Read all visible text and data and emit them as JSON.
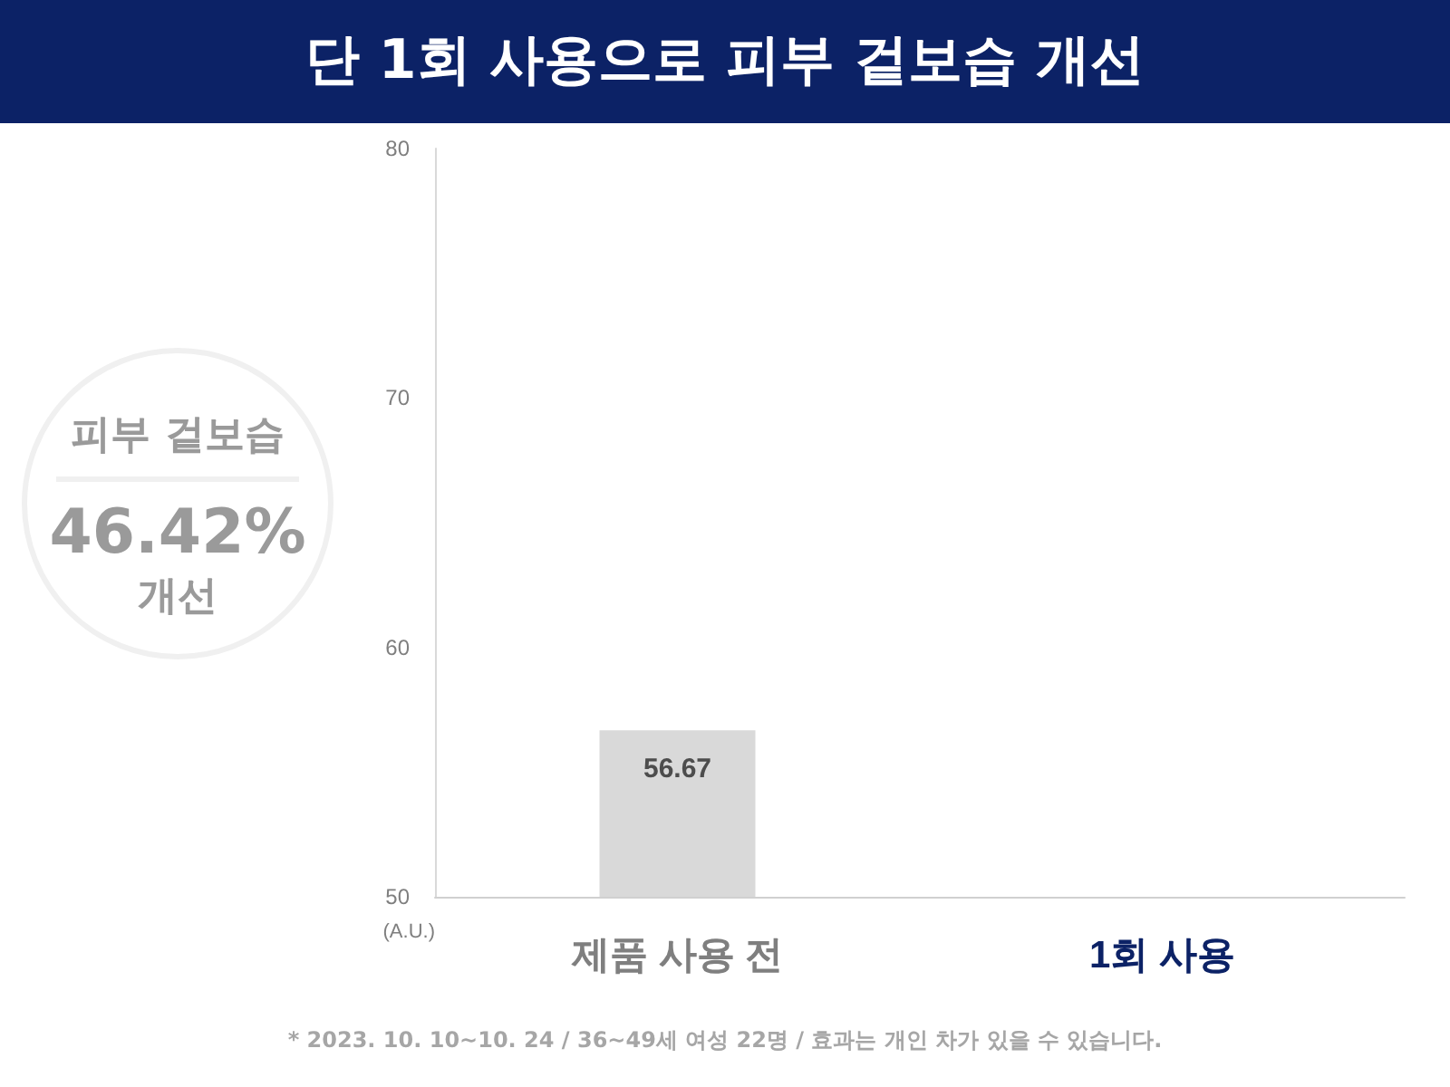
{
  "chart_data": {
    "type": "bar",
    "title": "단 1회 사용으로 피부 겉보습 개선",
    "categories": [
      "제품 사용 전",
      "1회 사용"
    ],
    "values": [
      56.67,
      null
    ],
    "color": "#d9d9d9",
    "ylabel": "(A.U.)",
    "ylim": [
      50,
      80
    ],
    "yticks": [
      50,
      60,
      70,
      80
    ],
    "grid": false,
    "data_labels": true,
    "annotations": [
      "피부 겉보습",
      "46.42%",
      "개선",
      "* 2023. 10. 10~10. 24 / 36~49세 여성 22명 / 효과는 개인 차가 있을 수 있습니다."
    ]
  }
}
